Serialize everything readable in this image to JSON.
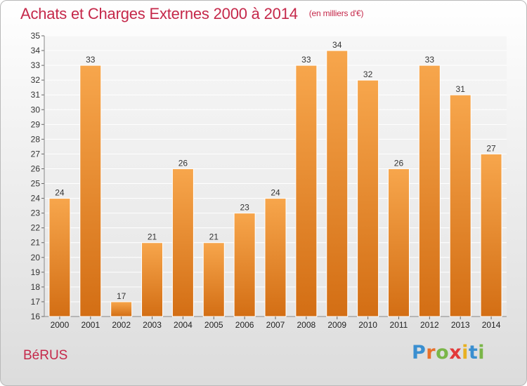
{
  "header": {
    "title": "Achats et Charges Externes 2000 à 2014",
    "unit": "(en milliers d'€)"
  },
  "commune": "BéRUS",
  "brand": {
    "letters": [
      {
        "char": "P",
        "color": "#3a8fd0"
      },
      {
        "char": "r",
        "color": "#e8702a"
      },
      {
        "char": "o",
        "color": "#7ab648"
      },
      {
        "char": "x",
        "color": "#e23a3a"
      },
      {
        "char": "i",
        "color": "#e8b020"
      },
      {
        "char": "t",
        "color": "#3a8fd0"
      },
      {
        "char": "i",
        "color": "#7ab648"
      }
    ]
  },
  "chart_data": {
    "type": "bar",
    "title": "Achats et Charges Externes 2000 à 2014",
    "xlabel": "",
    "ylabel": "",
    "categories": [
      "2000",
      "2001",
      "2002",
      "2003",
      "2004",
      "2005",
      "2006",
      "2007",
      "2008",
      "2009",
      "2010",
      "2011",
      "2012",
      "2013",
      "2014"
    ],
    "values": [
      24,
      33,
      17,
      21,
      26,
      21,
      23,
      24,
      33,
      34,
      32,
      26,
      33,
      31,
      27
    ],
    "ylim": [
      16,
      35
    ],
    "yticks": [
      16,
      17,
      18,
      19,
      20,
      21,
      22,
      23,
      24,
      25,
      26,
      27,
      28,
      29,
      30,
      31,
      32,
      33,
      34,
      35
    ],
    "grid": true,
    "bar_color": "#f0922e"
  }
}
